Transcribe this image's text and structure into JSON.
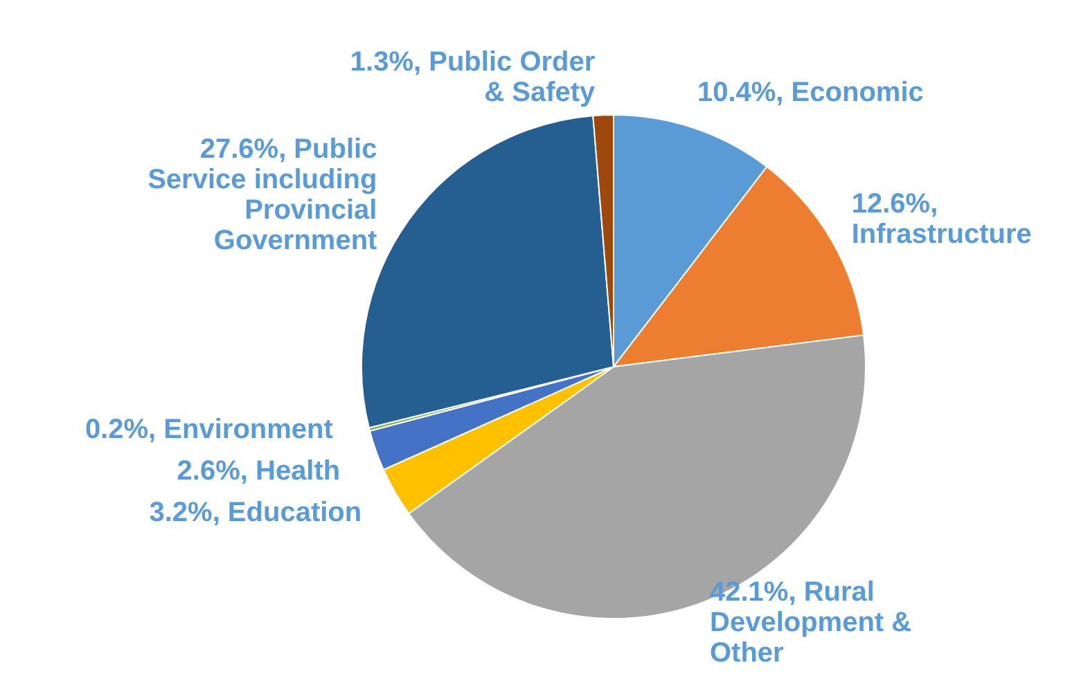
{
  "chart_data": {
    "type": "pie",
    "categories": [
      "Economic",
      "Infrastructure",
      "Rural Development & Other",
      "Education",
      "Health",
      "Environment",
      "Public Service including Provincial Government",
      "Public Order & Safety"
    ],
    "values": [
      10.4,
      12.6,
      42.1,
      3.2,
      2.6,
      0.2,
      27.6,
      1.3
    ],
    "colors": [
      "#5b9bd5",
      "#ed7d31",
      "#a5a5a5",
      "#ffc000",
      "#4472c4",
      "#70ad47",
      "#255e91",
      "#9e480e"
    ],
    "value_labels": [
      "10.4%,",
      "12.6%,",
      "42.1%,",
      "3.2%,",
      "2.6%,",
      "0.2%,",
      "27.6%,",
      "1.3%,"
    ]
  }
}
